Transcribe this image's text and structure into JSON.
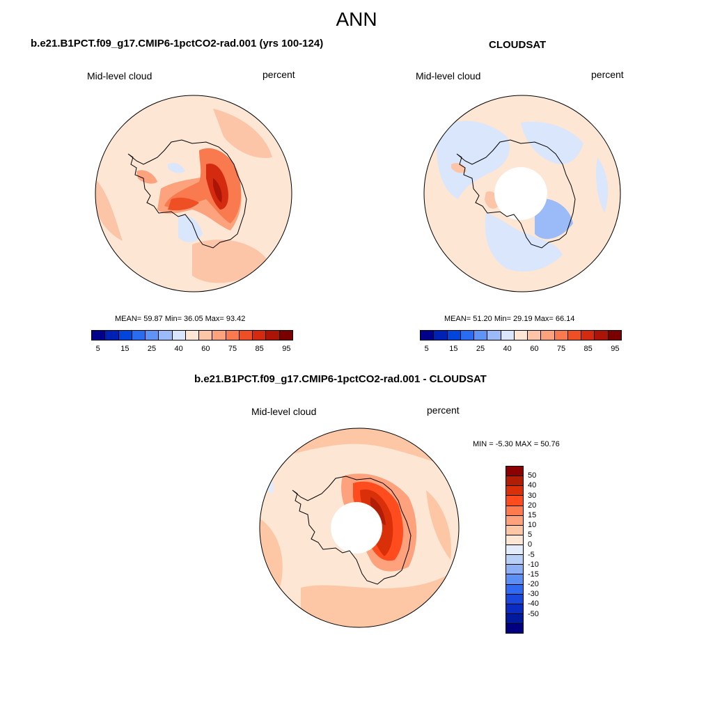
{
  "figure": {
    "title": "ANN"
  },
  "panels": [
    {
      "title": "b.e21.B1PCT.f09_g17.CMIP6-1pctCO2-rad.001 (yrs 100-124)",
      "left_label": "Mid-level cloud",
      "right_label": "percent",
      "stats": "MEAN=  59.87  Min=  36.05  Max=  93.42",
      "map_description": "South polar stereographic, Antarctica coastline"
    },
    {
      "title": "CLOUDSAT",
      "left_label": "Mid-level cloud",
      "right_label": "percent",
      "stats": "MEAN=  51.20  Min=  29.19  Max=  66.14",
      "map_description": "South polar stereographic, Antarctica coastline, missing data near pole"
    },
    {
      "title": "b.e21.B1PCT.f09_g17.CMIP6-1pctCO2-rad.001 - CLOUDSAT",
      "left_label": "Mid-level cloud",
      "right_label": "percent",
      "stats": "MIN =  -5.30 MAX =  50.76",
      "map_description": "Difference field, missing data near pole"
    }
  ],
  "colorbar_abs": {
    "colors": [
      "#00008b",
      "#0022b4",
      "#0045dc",
      "#2a6cf0",
      "#5f93f5",
      "#9bbbf8",
      "#d9e6fb",
      "#fde6d4",
      "#fcc5a8",
      "#fca27c",
      "#f87a4e",
      "#ee4f24",
      "#d42a10",
      "#ac1408",
      "#7a0000"
    ],
    "labels": [
      "5",
      "15",
      "25",
      "40",
      "60",
      "75",
      "85",
      "95"
    ]
  },
  "colorbar_diff": {
    "colors": [
      "#8b0000",
      "#b21d06",
      "#d9300a",
      "#ff4c1e",
      "#ff7a4c",
      "#fda27c",
      "#fdc7a6",
      "#fde6d4",
      "#e3ecfa",
      "#b8cff6",
      "#8cb0f3",
      "#5b8ff3",
      "#2f6af0",
      "#1a48dc",
      "#0a2cc0",
      "#001a9e",
      "#000080"
    ],
    "labels": [
      "50",
      "40",
      "30",
      "20",
      "15",
      "10",
      "5",
      "0",
      "-5",
      "-10",
      "-15",
      "-20",
      "-30",
      "-40",
      "-50"
    ]
  }
}
